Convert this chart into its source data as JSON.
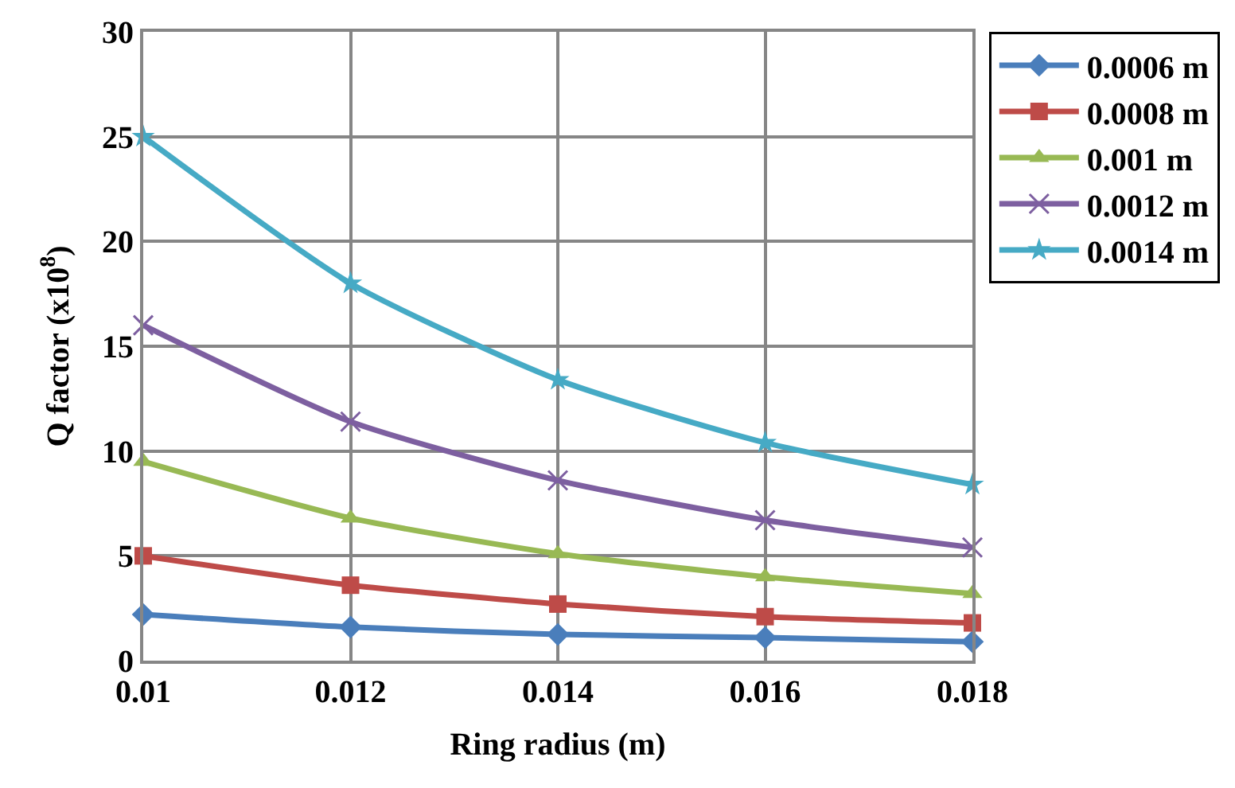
{
  "chart_data": {
    "type": "line",
    "xlabel": "Ring radius (m)",
    "ylabel": "Q factor (x10$^{8}$)",
    "x": [
      0.01,
      0.012,
      0.014,
      0.016,
      0.018
    ],
    "series": [
      {
        "name": "0.0006 m",
        "color": "#4a7ebb",
        "marker": "diamond",
        "values": [
          2.2,
          1.6,
          1.25,
          1.1,
          0.9
        ]
      },
      {
        "name": "0.0008 m",
        "color": "#be4b48",
        "marker": "square",
        "values": [
          5.0,
          3.6,
          2.7,
          2.1,
          1.8
        ]
      },
      {
        "name": "0.001 m",
        "color": "#98b954",
        "marker": "triangle",
        "values": [
          9.5,
          6.8,
          5.1,
          4.0,
          3.2
        ]
      },
      {
        "name": "0.0012 m",
        "color": "#7d5fa0",
        "marker": "cross",
        "values": [
          16,
          11.4,
          8.6,
          6.7,
          5.4
        ]
      },
      {
        "name": "0.0014 m",
        "color": "#46aac5",
        "marker": "star",
        "values": [
          25,
          18,
          13.4,
          10.4,
          8.4
        ]
      }
    ],
    "xlim": [
      0.01,
      0.018
    ],
    "xticks": [
      0.01,
      0.012,
      0.014,
      0.016,
      0.018
    ],
    "ylim": [
      0,
      30
    ],
    "yticks": [
      0,
      5,
      10,
      15,
      20,
      25,
      30
    ],
    "grid": true,
    "legend": "top right",
    "line_style": "solid"
  }
}
